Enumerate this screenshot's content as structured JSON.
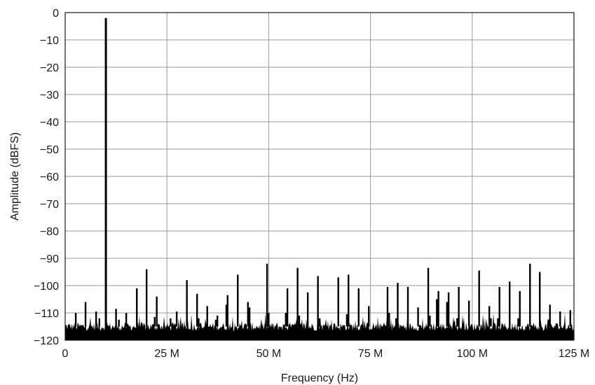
{
  "chart_data": {
    "type": "line",
    "title": "",
    "xlabel": "Frequency (Hz)",
    "ylabel": "Amplitude (dBFS)",
    "xlim": [
      0,
      125
    ],
    "ylim": [
      -120,
      0
    ],
    "x_unit": "MHz",
    "grid": true,
    "x_ticks": [
      {
        "value": 0,
        "label": "0"
      },
      {
        "value": 25,
        "label": "25 M"
      },
      {
        "value": 50,
        "label": "50 M"
      },
      {
        "value": 75,
        "label": "75 M"
      },
      {
        "value": 100,
        "label": "100 M"
      },
      {
        "value": 125,
        "label": "125 M"
      }
    ],
    "y_ticks": [
      {
        "value": 0,
        "label": "0"
      },
      {
        "value": -10,
        "label": "−10"
      },
      {
        "value": -20,
        "label": "−20"
      },
      {
        "value": -30,
        "label": "−30"
      },
      {
        "value": -40,
        "label": "−40"
      },
      {
        "value": -50,
        "label": "−50"
      },
      {
        "value": -60,
        "label": "−60"
      },
      {
        "value": -70,
        "label": "−70"
      },
      {
        "value": -80,
        "label": "−80"
      },
      {
        "value": -90,
        "label": "−90"
      },
      {
        "value": -100,
        "label": "−100"
      },
      {
        "value": -110,
        "label": "−110"
      },
      {
        "value": -120,
        "label": "−120"
      }
    ],
    "noise_floor_dbfs": -115,
    "fundamental": {
      "x": 10.0,
      "y": -2
    },
    "spurs": [
      {
        "x": 2.6,
        "y": -110
      },
      {
        "x": 5.0,
        "y": -106
      },
      {
        "x": 7.6,
        "y": -109.5
      },
      {
        "x": 12.5,
        "y": -108.5
      },
      {
        "x": 15.0,
        "y": -110
      },
      {
        "x": 17.6,
        "y": -101
      },
      {
        "x": 20.0,
        "y": -94
      },
      {
        "x": 22.5,
        "y": -104
      },
      {
        "x": 27.4,
        "y": -109.5
      },
      {
        "x": 29.9,
        "y": -98
      },
      {
        "x": 32.4,
        "y": -103
      },
      {
        "x": 34.9,
        "y": -107.5
      },
      {
        "x": 37.4,
        "y": -111
      },
      {
        "x": 39.9,
        "y": -103.5
      },
      {
        "x": 42.4,
        "y": -96
      },
      {
        "x": 44.9,
        "y": -106
      },
      {
        "x": 49.6,
        "y": -92
      },
      {
        "x": 54.6,
        "y": -101
      },
      {
        "x": 57.1,
        "y": -93.5
      },
      {
        "x": 59.6,
        "y": -102.5
      },
      {
        "x": 62.1,
        "y": -96.5
      },
      {
        "x": 67.1,
        "y": -97
      },
      {
        "x": 69.6,
        "y": -96
      },
      {
        "x": 72.1,
        "y": -101
      },
      {
        "x": 74.6,
        "y": -107.5
      },
      {
        "x": 79.2,
        "y": -100.5
      },
      {
        "x": 81.7,
        "y": -99
      },
      {
        "x": 84.2,
        "y": -100.5
      },
      {
        "x": 86.7,
        "y": -108
      },
      {
        "x": 89.2,
        "y": -93.5
      },
      {
        "x": 91.7,
        "y": -102
      },
      {
        "x": 94.2,
        "y": -102.5
      },
      {
        "x": 96.7,
        "y": -100.5
      },
      {
        "x": 99.2,
        "y": -105.5
      },
      {
        "x": 101.7,
        "y": -94.5
      },
      {
        "x": 104.2,
        "y": -107.5
      },
      {
        "x": 106.7,
        "y": -100.5
      },
      {
        "x": 109.2,
        "y": -98.5
      },
      {
        "x": 111.7,
        "y": -102
      },
      {
        "x": 114.2,
        "y": -92
      },
      {
        "x": 116.6,
        "y": -95
      },
      {
        "x": 119.1,
        "y": -107
      },
      {
        "x": 121.6,
        "y": -109.5
      },
      {
        "x": 124.1,
        "y": -109
      }
    ],
    "secondary_spurs": [
      {
        "x": 8.4,
        "y": -112
      },
      {
        "x": 13.2,
        "y": -112.5
      },
      {
        "x": 22.0,
        "y": -111.5
      },
      {
        "x": 25.9,
        "y": -112
      },
      {
        "x": 32.8,
        "y": -112
      },
      {
        "x": 37.0,
        "y": -112.5
      },
      {
        "x": 39.6,
        "y": -107
      },
      {
        "x": 45.3,
        "y": -108
      },
      {
        "x": 50.0,
        "y": -110
      },
      {
        "x": 54.2,
        "y": -110
      },
      {
        "x": 57.5,
        "y": -111
      },
      {
        "x": 62.5,
        "y": -112
      },
      {
        "x": 69.2,
        "y": -110.5
      },
      {
        "x": 79.6,
        "y": -110
      },
      {
        "x": 81.3,
        "y": -112
      },
      {
        "x": 89.6,
        "y": -111
      },
      {
        "x": 91.3,
        "y": -105
      },
      {
        "x": 93.8,
        "y": -106
      },
      {
        "x": 96.3,
        "y": -112
      },
      {
        "x": 104.6,
        "y": -112
      },
      {
        "x": 106.3,
        "y": -112
      },
      {
        "x": 111.3,
        "y": -112
      },
      {
        "x": 118.8,
        "y": -112.5
      }
    ]
  }
}
